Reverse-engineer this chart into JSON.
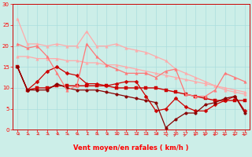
{
  "xlabel": "Vent moyen/en rafales ( km/h )",
  "xlim": [
    -0.5,
    23.5
  ],
  "ylim": [
    0,
    30
  ],
  "yticks": [
    0,
    5,
    10,
    15,
    20,
    25,
    30
  ],
  "xticks": [
    0,
    1,
    2,
    3,
    4,
    5,
    6,
    7,
    8,
    9,
    10,
    11,
    12,
    13,
    14,
    15,
    16,
    17,
    18,
    19,
    20,
    21,
    22,
    23
  ],
  "bg_color": "#cceee8",
  "grid_color": "#aadddd",
  "lines": [
    {
      "x": [
        0,
        1,
        2,
        3,
        4,
        5,
        6,
        7,
        8,
        9,
        10,
        11,
        12,
        13,
        14,
        15,
        16,
        17,
        18,
        19,
        20,
        21,
        22,
        23
      ],
      "y": [
        26.5,
        20.5,
        20.5,
        20.0,
        20.5,
        20.0,
        20.0,
        23.5,
        20.0,
        20.0,
        20.5,
        19.5,
        19.0,
        18.5,
        17.5,
        16.5,
        14.5,
        13.5,
        12.5,
        11.5,
        10.5,
        9.5,
        9.0,
        8.5
      ],
      "color": "#ffaaaa",
      "marker": "^",
      "markersize": 2.5,
      "linewidth": 0.9
    },
    {
      "x": [
        0,
        1,
        2,
        3,
        4,
        5,
        6,
        7,
        8,
        9,
        10,
        11,
        12,
        13,
        14,
        15,
        16,
        17,
        18,
        19,
        20,
        21,
        22,
        23
      ],
      "y": [
        17.5,
        17.5,
        17.0,
        17.0,
        17.0,
        16.5,
        16.5,
        16.0,
        16.0,
        15.5,
        15.5,
        15.0,
        14.5,
        14.0,
        13.5,
        13.0,
        12.5,
        12.0,
        11.5,
        11.0,
        10.5,
        10.0,
        9.5,
        9.0
      ],
      "color": "#ffaaaa",
      "marker": "^",
      "markersize": 2.5,
      "linewidth": 0.9
    },
    {
      "x": [
        0,
        1,
        2,
        3,
        4,
        5,
        6,
        7,
        8,
        9,
        10,
        11,
        12,
        13,
        14,
        15,
        16,
        17,
        18,
        19,
        20,
        21,
        22,
        23
      ],
      "y": [
        15.0,
        9.5,
        10.0,
        10.0,
        10.5,
        10.5,
        10.5,
        10.5,
        10.5,
        10.5,
        10.0,
        10.0,
        10.0,
        10.0,
        10.0,
        9.5,
        9.0,
        8.5,
        8.0,
        7.5,
        7.0,
        7.0,
        7.0,
        7.0
      ],
      "color": "#cc0000",
      "marker": "s",
      "markersize": 2.5,
      "linewidth": 1.0
    },
    {
      "x": [
        0,
        1,
        2,
        3,
        4,
        5,
        6,
        7,
        8,
        9,
        10,
        11,
        12,
        13,
        14,
        15,
        16,
        17,
        18,
        19,
        20,
        21,
        22,
        23
      ],
      "y": [
        15.0,
        9.5,
        11.5,
        14.0,
        15.0,
        13.5,
        13.0,
        11.0,
        11.0,
        10.5,
        11.0,
        11.5,
        11.5,
        8.0,
        4.5,
        5.0,
        7.5,
        5.5,
        4.5,
        4.5,
        6.0,
        7.0,
        8.0,
        4.5
      ],
      "color": "#cc0000",
      "marker": "D",
      "markersize": 2.5,
      "linewidth": 0.9
    },
    {
      "x": [
        0,
        1,
        2,
        3,
        4,
        5,
        6,
        7,
        8,
        9,
        10,
        11,
        12,
        13,
        14,
        15,
        16,
        17,
        18,
        19,
        20,
        21,
        22,
        23
      ],
      "y": [
        15.0,
        9.5,
        9.5,
        9.5,
        11.0,
        10.0,
        9.5,
        9.5,
        9.5,
        9.0,
        8.5,
        8.0,
        7.5,
        7.0,
        6.5,
        0.5,
        2.5,
        4.0,
        4.0,
        6.0,
        6.5,
        7.5,
        8.0,
        4.0
      ],
      "color": "#880000",
      "marker": "o",
      "markersize": 2.5,
      "linewidth": 0.9
    },
    {
      "x": [
        0,
        1,
        2,
        3,
        4,
        5,
        6,
        7,
        8,
        9,
        10,
        11,
        12,
        13,
        14,
        15,
        16,
        17,
        18,
        19,
        20,
        21,
        22,
        23
      ],
      "y": [
        20.5,
        19.5,
        20.0,
        17.5,
        13.5,
        9.5,
        10.5,
        20.5,
        17.5,
        15.5,
        14.5,
        13.5,
        13.5,
        13.5,
        12.5,
        14.0,
        14.5,
        8.5,
        8.0,
        8.0,
        9.5,
        13.5,
        12.5,
        11.5
      ],
      "color": "#ff7777",
      "marker": "^",
      "markersize": 2.5,
      "linewidth": 0.9
    }
  ],
  "wind_arrows": {
    "x": [
      0,
      1,
      2,
      3,
      4,
      5,
      6,
      7,
      8,
      9,
      10,
      11,
      12,
      13,
      14,
      15,
      16,
      17,
      18,
      19,
      20,
      21,
      22,
      23
    ],
    "angles_deg": [
      225,
      225,
      225,
      225,
      225,
      225,
      225,
      225,
      225,
      225,
      225,
      225,
      225,
      225,
      225,
      315,
      45,
      45,
      90,
      90,
      90,
      90,
      90,
      90
    ]
  }
}
